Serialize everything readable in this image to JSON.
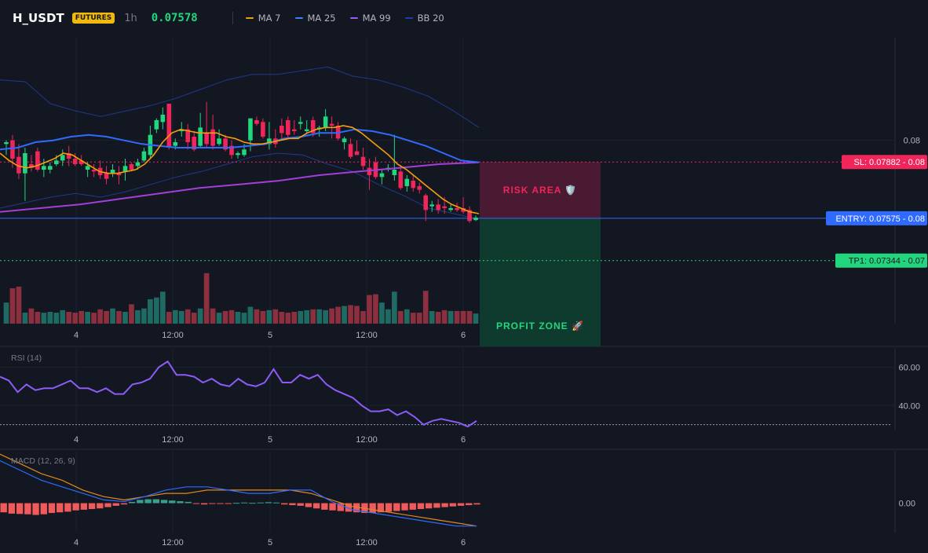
{
  "header": {
    "symbol": "H_USDT",
    "badge": "FUTURES",
    "timeframe": "1h",
    "last_price": "0.07578",
    "legend": [
      {
        "label": "MA 7",
        "color": "#f59e0b"
      },
      {
        "label": "MA 25",
        "color": "#3b82f6"
      },
      {
        "label": "MA 99",
        "color": "#a855f7"
      },
      {
        "label": "BB 20",
        "color": "#1e40af"
      }
    ]
  },
  "colors": {
    "background": "#131722",
    "up": "#22d67e",
    "down": "#f0265a",
    "vol_up": "#1f6b63",
    "vol_down": "#8c2f3f",
    "rsi": "#8b5cf6",
    "macd": "#2f6bff",
    "signal": "#f59e0b",
    "hist_pos": "#35a08b",
    "hist_neg": "#f05a5a",
    "risk": "#f0265a",
    "entry": "#2f6bff",
    "profit": "#22d67e"
  },
  "trade": {
    "sl_label": "SL: 0.07882 - 0.08",
    "entry_label": "ENTRY: 0.07575 - 0.08",
    "tp_label": "TP1: 0.07344 - 0.07",
    "risk_label": "RISK AREA 🛡️",
    "profit_label": "PROFIT ZONE 🚀"
  },
  "chart_data": [
    {
      "type": "candlestick",
      "title": "H_USDT 1h",
      "x_ticks": [
        "4",
        "12:00",
        "5",
        "12:00",
        "6"
      ],
      "y_ticks": [
        "0.08"
      ],
      "ylim": [
        0.07,
        0.0856
      ],
      "entry": 0.07575,
      "stop_loss": 0.07882,
      "take_profit": 0.07344,
      "ohlc": [
        [
          0.0798,
          0.08,
          0.0792,
          0.0799
        ],
        [
          0.08,
          0.0803,
          0.0785,
          0.079
        ],
        [
          0.0791,
          0.0798,
          0.0779,
          0.0782
        ],
        [
          0.0782,
          0.0796,
          0.0767,
          0.0793
        ],
        [
          0.0787,
          0.0792,
          0.0783,
          0.0785
        ],
        [
          0.0794,
          0.0796,
          0.0783,
          0.0784
        ],
        [
          0.0784,
          0.079,
          0.078,
          0.0786
        ],
        [
          0.0784,
          0.0788,
          0.0782,
          0.0786
        ],
        [
          0.0787,
          0.0792,
          0.0786,
          0.0789
        ],
        [
          0.0789,
          0.0795,
          0.0786,
          0.0792
        ],
        [
          0.0793,
          0.0797,
          0.0786,
          0.079
        ],
        [
          0.079,
          0.0793,
          0.0786,
          0.0787
        ],
        [
          0.0789,
          0.0792,
          0.0786,
          0.0787
        ],
        [
          0.0784,
          0.0788,
          0.078,
          0.0786
        ],
        [
          0.0784,
          0.0787,
          0.078,
          0.0783
        ],
        [
          0.0785,
          0.0789,
          0.0779,
          0.0781
        ],
        [
          0.0782,
          0.0786,
          0.0776,
          0.0779
        ],
        [
          0.0782,
          0.0787,
          0.078,
          0.0784
        ],
        [
          0.0782,
          0.0786,
          0.0776,
          0.0781
        ],
        [
          0.0783,
          0.079,
          0.0778,
          0.0786
        ],
        [
          0.0787,
          0.0788,
          0.0783,
          0.0784
        ],
        [
          0.0786,
          0.079,
          0.0784,
          0.0788
        ],
        [
          0.0789,
          0.0796,
          0.0788,
          0.0794
        ],
        [
          0.0792,
          0.0808,
          0.079,
          0.0803
        ],
        [
          0.0806,
          0.0812,
          0.0804,
          0.0811
        ],
        [
          0.081,
          0.0818,
          0.0806,
          0.0814
        ],
        [
          0.082,
          0.082,
          0.0795,
          0.0796
        ],
        [
          0.0797,
          0.0801,
          0.0795,
          0.0799
        ],
        [
          0.0805,
          0.081,
          0.0802,
          0.0806
        ],
        [
          0.0806,
          0.0809,
          0.0795,
          0.0799
        ],
        [
          0.0802,
          0.0805,
          0.0794,
          0.0795
        ],
        [
          0.0797,
          0.0815,
          0.0796,
          0.0807
        ],
        [
          0.0804,
          0.0821,
          0.0796,
          0.0798
        ],
        [
          0.0806,
          0.0814,
          0.0795,
          0.0797
        ],
        [
          0.0798,
          0.0806,
          0.0797,
          0.0801
        ],
        [
          0.0801,
          0.0803,
          0.0794,
          0.0795
        ],
        [
          0.0797,
          0.08,
          0.079,
          0.0792
        ],
        [
          0.0792,
          0.0794,
          0.079,
          0.0793
        ],
        [
          0.0792,
          0.0798,
          0.0791,
          0.0795
        ],
        [
          0.08,
          0.0812,
          0.0794,
          0.0812
        ],
        [
          0.0811,
          0.0813,
          0.0808,
          0.0809
        ],
        [
          0.081,
          0.0812,
          0.0801,
          0.0802
        ],
        [
          0.0798,
          0.081,
          0.0795,
          0.0801
        ],
        [
          0.0801,
          0.0806,
          0.0796,
          0.0798
        ],
        [
          0.0808,
          0.0812,
          0.08,
          0.0804
        ],
        [
          0.0811,
          0.0813,
          0.0801,
          0.0803
        ],
        [
          0.0806,
          0.0811,
          0.0803,
          0.0805
        ],
        [
          0.0809,
          0.0813,
          0.0806,
          0.081
        ],
        [
          0.0805,
          0.0811,
          0.0804,
          0.0806
        ],
        [
          0.0811,
          0.0813,
          0.0802,
          0.0804
        ],
        [
          0.0806,
          0.0808,
          0.0802,
          0.0807
        ],
        [
          0.0807,
          0.0817,
          0.0805,
          0.0813
        ],
        [
          0.0809,
          0.0813,
          0.0801,
          0.0808
        ],
        [
          0.0808,
          0.081,
          0.08,
          0.0801
        ],
        [
          0.0799,
          0.0802,
          0.0795,
          0.0801
        ],
        [
          0.0798,
          0.0801,
          0.079,
          0.0791
        ],
        [
          0.0794,
          0.08,
          0.0792,
          0.0792
        ],
        [
          0.0791,
          0.0796,
          0.0784,
          0.0786
        ],
        [
          0.0785,
          0.079,
          0.0773,
          0.0781
        ],
        [
          0.0788,
          0.0791,
          0.0779,
          0.078
        ],
        [
          0.078,
          0.0784,
          0.0776,
          0.0782
        ],
        [
          0.0784,
          0.0787,
          0.0783,
          0.0785
        ],
        [
          0.0781,
          0.0803,
          0.0778,
          0.0784
        ],
        [
          0.0783,
          0.0786,
          0.0773,
          0.0774
        ],
        [
          0.0775,
          0.0781,
          0.0772,
          0.0779
        ],
        [
          0.0778,
          0.0781,
          0.0772,
          0.0774
        ],
        [
          0.0775,
          0.0777,
          0.0771,
          0.0773
        ],
        [
          0.077,
          0.0771,
          0.0756,
          0.0762
        ],
        [
          0.0764,
          0.0767,
          0.0761,
          0.0765
        ],
        [
          0.0765,
          0.0768,
          0.076,
          0.0762
        ],
        [
          0.0764,
          0.0769,
          0.076,
          0.0763
        ],
        [
          0.0762,
          0.0765,
          0.0761,
          0.0763
        ],
        [
          0.0763,
          0.0766,
          0.0761,
          0.0762
        ],
        [
          0.0763,
          0.0769,
          0.076,
          0.0761
        ],
        [
          0.0762,
          0.0764,
          0.0755,
          0.0756
        ],
        [
          0.07565,
          0.0759,
          0.0756,
          0.07578
        ]
      ],
      "volume": [
        25,
        42,
        44,
        13,
        18,
        14,
        13,
        14,
        13,
        16,
        14,
        13,
        15,
        14,
        13,
        17,
        15,
        18,
        15,
        14,
        23,
        16,
        18,
        29,
        31,
        38,
        14,
        16,
        15,
        17,
        13,
        18,
        60,
        18,
        13,
        15,
        16,
        14,
        13,
        20,
        17,
        15,
        16,
        17,
        14,
        13,
        14,
        15,
        16,
        17,
        17,
        16,
        18,
        20,
        21,
        22,
        21,
        15,
        34,
        35,
        25,
        17,
        38,
        15,
        17,
        13,
        13,
        39,
        15,
        14,
        16,
        15,
        15,
        15,
        15,
        12
      ],
      "ma7": [
        0.0793,
        0.0789,
        0.0786,
        0.0785,
        0.0786,
        0.0788,
        0.079,
        0.0793,
        0.0792,
        0.0789,
        0.0786,
        0.0783,
        0.0782,
        0.0782,
        0.0783,
        0.0784,
        0.0787,
        0.0792,
        0.0799,
        0.0804,
        0.0806,
        0.0805,
        0.0804,
        0.0804,
        0.0804,
        0.0802,
        0.0801,
        0.0799,
        0.0798,
        0.0798,
        0.0799,
        0.08,
        0.0801,
        0.0801,
        0.0804,
        0.0806,
        0.0807,
        0.0807,
        0.0808,
        0.0807,
        0.0804,
        0.08,
        0.0796,
        0.0792,
        0.0787,
        0.0784,
        0.078,
        0.0776,
        0.0772,
        0.0768,
        0.0765,
        0.0763,
        0.0761,
        0.076
      ],
      "ma25": [
        0.0795,
        0.0796,
        0.0799,
        0.08,
        0.0802,
        0.0803,
        0.0802,
        0.08,
        0.0798,
        0.0797,
        0.0796,
        0.0796,
        0.0796,
        0.0796,
        0.0797,
        0.0798,
        0.0801,
        0.0802,
        0.0804,
        0.0804,
        0.0806,
        0.0805,
        0.0803,
        0.08,
        0.0797,
        0.0793,
        0.0789,
        0.0788
      ],
      "ma99": [
        0.0761,
        0.0763,
        0.0765,
        0.0768,
        0.0771,
        0.0774,
        0.0776,
        0.0778,
        0.0781,
        0.0783,
        0.0785,
        0.0787,
        0.0788
      ],
      "bb_upper": [
        0.0833,
        0.0832,
        0.082,
        0.0816,
        0.0813,
        0.0816,
        0.0819,
        0.0823,
        0.0828,
        0.0833,
        0.0836,
        0.0836,
        0.0838,
        0.084,
        0.0835,
        0.0833,
        0.0829,
        0.0824,
        0.0816,
        0.0807
      ],
      "bb_lower": [
        0.0763,
        0.0766,
        0.0769,
        0.0771,
        0.0769,
        0.0772,
        0.0776,
        0.078,
        0.0783,
        0.0787,
        0.0791,
        0.0793,
        0.0792,
        0.0787,
        0.0783,
        0.0776,
        0.077,
        0.0763,
        0.076,
        0.0757
      ]
    },
    {
      "type": "line",
      "title": "RSI (14)",
      "y_ticks": [
        "60.00",
        "40.00"
      ],
      "ylim": [
        27,
        70
      ],
      "oversold_line": 30,
      "values": [
        55,
        53,
        47,
        51,
        48,
        49,
        49,
        51,
        53,
        49,
        49,
        47,
        49,
        46,
        46,
        51,
        52,
        54,
        60,
        63,
        56,
        56,
        55,
        52,
        54,
        51,
        50,
        54,
        51,
        50,
        52,
        59,
        52,
        52,
        56,
        54,
        56,
        51,
        48,
        46,
        44,
        40,
        37,
        37,
        38,
        35,
        37,
        34,
        30,
        32,
        33,
        32,
        31,
        29,
        32
      ]
    },
    {
      "type": "line",
      "title": "MACD (12, 26, 9)",
      "y_ticks": [
        "0.00"
      ],
      "ylim": [
        -0.0009,
        0.0016
      ],
      "macd": [
        0.0013,
        0.001,
        0.0007,
        0.0005,
        0.0003,
        0.0001,
        5e-05,
        0.0002,
        0.0004,
        0.0005,
        0.0005,
        0.0004,
        0.0003,
        0.0003,
        0.0004,
        0.0004,
        5e-05,
        -0.0002,
        -0.0003,
        -0.0004,
        -0.0005,
        -0.0006,
        -0.0007,
        -0.0007
      ],
      "signal": [
        0.0015,
        0.0012,
        0.0009,
        0.0007,
        0.0004,
        0.0002,
        0.0001,
        0.0002,
        0.0003,
        0.0003,
        0.0004,
        0.0004,
        0.0004,
        0.0004,
        0.0004,
        0.0003,
        0.0001,
        -0.0001,
        -0.0002,
        -0.0003,
        -0.0004,
        -0.0005,
        -0.0006,
        -0.0007
      ],
      "histogram": [
        -0.00028,
        -0.00032,
        -0.00033,
        -0.00034,
        -0.00036,
        -0.00034,
        -0.0003,
        -0.00028,
        -0.00026,
        -0.00022,
        -0.0002,
        -0.00018,
        -0.00016,
        -0.00012,
        -8e-05,
        -4e-05,
        4e-05,
        0.0001,
        0.00012,
        0.00012,
        0.0001,
        8e-05,
        6e-05,
        4e-05,
        -2e-05,
        -4e-05,
        -2e-05,
        -2e-05,
        -1e-05,
        1e-05,
        2e-05,
        1e-05,
        2e-05,
        3e-05,
        2e-05,
        -4e-05,
        -6e-05,
        -8e-05,
        -0.00012,
        -0.00016,
        -0.0002,
        -0.00022,
        -0.00024,
        -0.00026,
        -0.00028,
        -0.0003,
        -0.0003,
        -0.00028,
        -0.00026,
        -0.00024,
        -0.00022,
        -0.0002,
        -0.00018,
        -0.00016,
        -0.00014,
        -0.00012,
        -0.0001,
        -8e-05,
        -6e-05,
        -4e-05
      ]
    }
  ]
}
